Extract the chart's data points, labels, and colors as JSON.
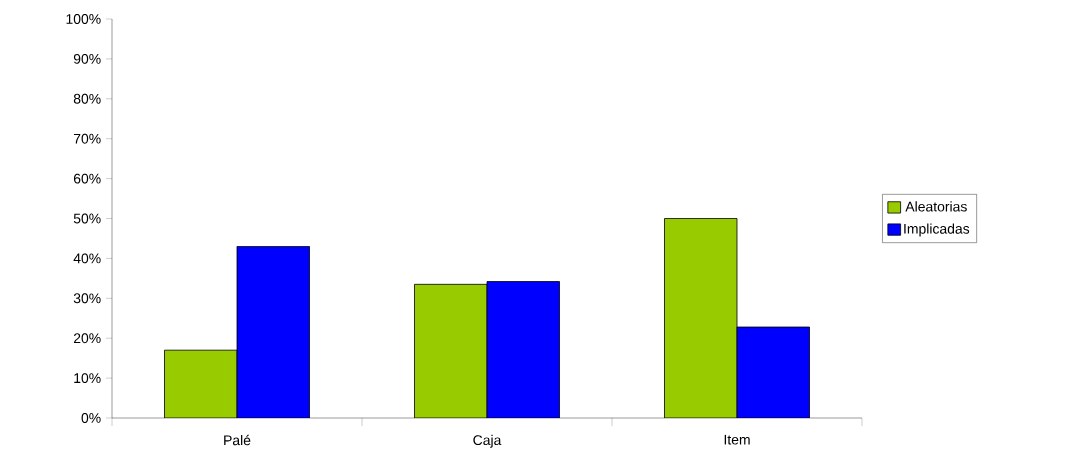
{
  "chart_data": {
    "type": "bar",
    "categories": [
      "Palé",
      "Caja",
      "Item"
    ],
    "series": [
      {
        "name": "Aleatorias",
        "color": "#99cc00",
        "values": [
          17,
          33.5,
          50
        ]
      },
      {
        "name": "Implicadas",
        "color": "#0000ff",
        "values": [
          43,
          34.2,
          22.8
        ]
      }
    ],
    "ylim": [
      0,
      100
    ],
    "yticks": [
      {
        "value": 0,
        "label": "0%"
      },
      {
        "value": 10,
        "label": "10%"
      },
      {
        "value": 20,
        "label": "20%"
      },
      {
        "value": 30,
        "label": "30%"
      },
      {
        "value": 40,
        "label": "40%"
      },
      {
        "value": 50,
        "label": "50%"
      },
      {
        "value": 60,
        "label": "60%"
      },
      {
        "value": 70,
        "label": "70%"
      },
      {
        "value": 80,
        "label": "80%"
      },
      {
        "value": 90,
        "label": "90%"
      },
      {
        "value": 100,
        "label": "100%"
      }
    ],
    "grid": false,
    "legend": "right"
  }
}
